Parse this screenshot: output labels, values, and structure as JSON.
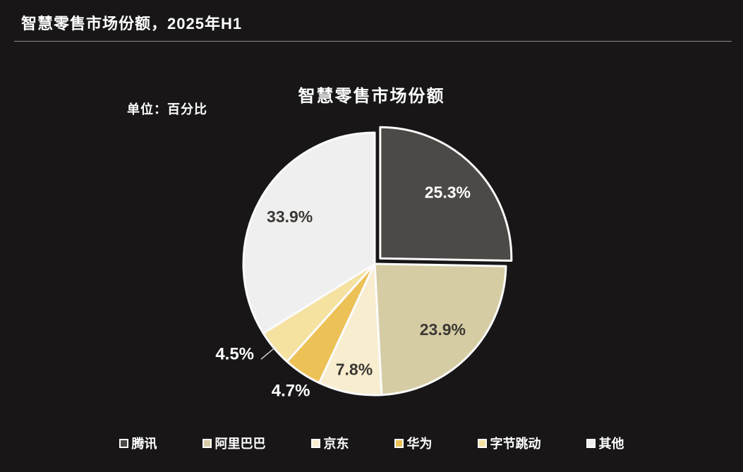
{
  "header": {
    "title": "智慧零售市场份额，2025年H1"
  },
  "chart": {
    "title": "智慧零售市场份额",
    "unit_label": "单位：百分比"
  },
  "chart_data": {
    "type": "pie",
    "title": "智慧零售市场份额",
    "unit": "百分比",
    "period": "2025年H1",
    "start_angle_deg": 0,
    "direction": "clockwise",
    "legend_position": "bottom",
    "background_color": "#181616",
    "slice_border_color": "#fbfbfb",
    "slices": [
      {
        "name": "腾讯",
        "value": 25.3,
        "label": "25.3%",
        "color": "#4d4946",
        "label_color": "#ffffff",
        "label_placement": "inside",
        "label_r": 0.72,
        "exploded": true
      },
      {
        "name": "阿里巴巴",
        "value": 23.9,
        "label": "23.9%",
        "color": "#d6cca4",
        "label_color": "#3b3834",
        "label_placement": "inside",
        "label_r": 0.72,
        "exploded": false
      },
      {
        "name": "京东",
        "value": 7.8,
        "label": "7.8%",
        "color": "#f8edcf",
        "label_color": "#3b3834",
        "label_placement": "inside",
        "label_r": 0.82,
        "exploded": false
      },
      {
        "name": "华为",
        "value": 4.7,
        "label": "4.7%",
        "color": "#ecc156",
        "label_color": "#ffffff",
        "label_placement": "outside",
        "label_r": 1.16,
        "exploded": false
      },
      {
        "name": "字节跳动",
        "value": 4.5,
        "label": "4.5%",
        "color": "#f5e1a0",
        "label_color": "#ffffff",
        "label_placement": "outside-leader",
        "label_r": 1.13,
        "exploded": false
      },
      {
        "name": "其他",
        "value": 33.9,
        "label": "33.9%",
        "color": "#f0eff0",
        "label_color": "#3b3834",
        "label_placement": "inside",
        "label_r": 0.74,
        "exploded": false
      }
    ]
  }
}
